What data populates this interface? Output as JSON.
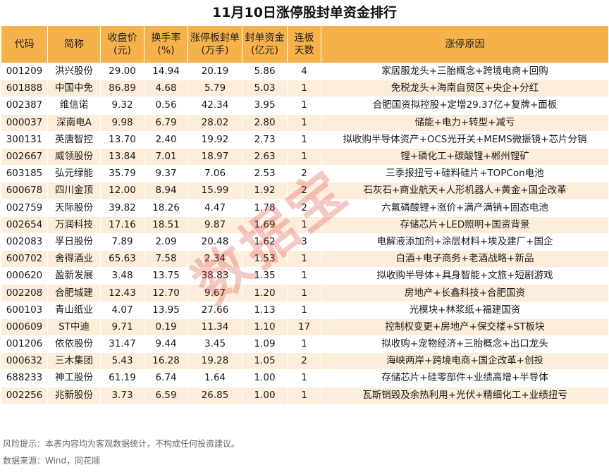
{
  "title": "11月10日涨停股封单资金排行",
  "headers": [
    {
      "l1": "代码",
      "l2": ""
    },
    {
      "l1": "简称",
      "l2": ""
    },
    {
      "l1": "收盘价",
      "l2": "(元)"
    },
    {
      "l1": "换手率",
      "l2": "(%)"
    },
    {
      "l1": "涨停板封单",
      "l2": "(万手)"
    },
    {
      "l1": "封单资金",
      "l2": "(亿元)"
    },
    {
      "l1": "连板",
      "l2": "天数"
    },
    {
      "l1": "涨停原因",
      "l2": ""
    }
  ],
  "rows": [
    [
      "001209",
      "洪兴股份",
      "29.00",
      "14.94",
      "20.19",
      "5.86",
      "4",
      "家居服龙头+三胎概念+跨境电商+回购"
    ],
    [
      "601888",
      "中国中免",
      "86.89",
      "4.68",
      "5.79",
      "5.03",
      "1",
      "免税龙头+海南自贸区+央企+分红"
    ],
    [
      "002387",
      "维信诺",
      "9.32",
      "0.56",
      "42.34",
      "3.95",
      "1",
      "合肥国资拟控股+定增29.37亿+复牌+面板"
    ],
    [
      "000037",
      "深南电A",
      "9.98",
      "6.79",
      "28.02",
      "2.80",
      "1",
      "储能+电力+转型+减亏"
    ],
    [
      "300131",
      "英唐智控",
      "13.70",
      "2.40",
      "19.92",
      "2.73",
      "1",
      "拟收购半导体资产+OCS光开关+MEMS微振镜+芯片分销"
    ],
    [
      "002667",
      "威领股份",
      "13.84",
      "7.01",
      "18.97",
      "2.63",
      "1",
      "锂+磷化工+碳酸锂+郴州锂矿"
    ],
    [
      "603185",
      "弘元绿能",
      "35.79",
      "9.37",
      "7.06",
      "2.53",
      "2",
      "三季报扭亏+硅料硅片+TOPCon电池"
    ],
    [
      "600678",
      "四川金顶",
      "12.00",
      "8.94",
      "15.99",
      "1.92",
      "2",
      "石灰石+商业航天+人形机器人+黄金+国企改革"
    ],
    [
      "002759",
      "天际股份",
      "39.82",
      "18.26",
      "4.47",
      "1.78",
      "2",
      "六氟磷酸锂+涨价+满产满销+固态电池"
    ],
    [
      "002654",
      "万润科技",
      "17.16",
      "18.51",
      "9.87",
      "1.69",
      "1",
      "存储芯片+LED照明+国资背景"
    ],
    [
      "002083",
      "孚日股份",
      "7.89",
      "2.09",
      "20.48",
      "1.62",
      "3",
      "电解液添加剂+涂层材料+埃及建厂+国企"
    ],
    [
      "600702",
      "舍得酒业",
      "65.63",
      "7.58",
      "2.34",
      "1.53",
      "1",
      "白酒+电子商务+老酒战略+新品"
    ],
    [
      "000620",
      "盈新发展",
      "3.48",
      "13.75",
      "38.83",
      "1.35",
      "1",
      "拟收购半导体+具身智能+文旅+短剧游戏"
    ],
    [
      "002208",
      "合肥城建",
      "12.43",
      "12.70",
      "9.67",
      "1.20",
      "1",
      "房地产+长鑫科技+合肥国资"
    ],
    [
      "600103",
      "青山纸业",
      "4.07",
      "13.95",
      "27.66",
      "1.13",
      "1",
      "光模块+林浆纸+福建国资"
    ],
    [
      "000609",
      "ST中迪",
      "9.71",
      "0.19",
      "11.34",
      "1.10",
      "17",
      "控制权变更+房地产+保交楼+ST板块"
    ],
    [
      "001206",
      "依依股份",
      "31.47",
      "9.44",
      "3.45",
      "1.09",
      "1",
      "拟收购+宠物经济+三胎概念+出口龙头"
    ],
    [
      "000632",
      "三木集团",
      "5.43",
      "16.28",
      "19.28",
      "1.05",
      "2",
      "海峡两岸+跨境电商+国企改革+创投"
    ],
    [
      "688233",
      "神工股份",
      "61.19",
      "6.74",
      "1.64",
      "1.00",
      "1",
      "存储芯片+硅零部件+业绩高增+半导体"
    ],
    [
      "002256",
      "兆新股份",
      "3.73",
      "6.59",
      "26.85",
      "1.00",
      "1",
      "瓦斯销毁及余热利用+光伏+精细化工+业绩扭亏"
    ]
  ],
  "watermark": "数据宝",
  "footer": {
    "risk": "风险提示：本表内容均为客观数据统计，不构成任何投资建议。",
    "source": "数据来源：Wind，同花顺"
  },
  "colors": {
    "header_bg": "#f6b24a",
    "stripe_bg": "#fdeedb",
    "watermark": "#dc3c32"
  }
}
